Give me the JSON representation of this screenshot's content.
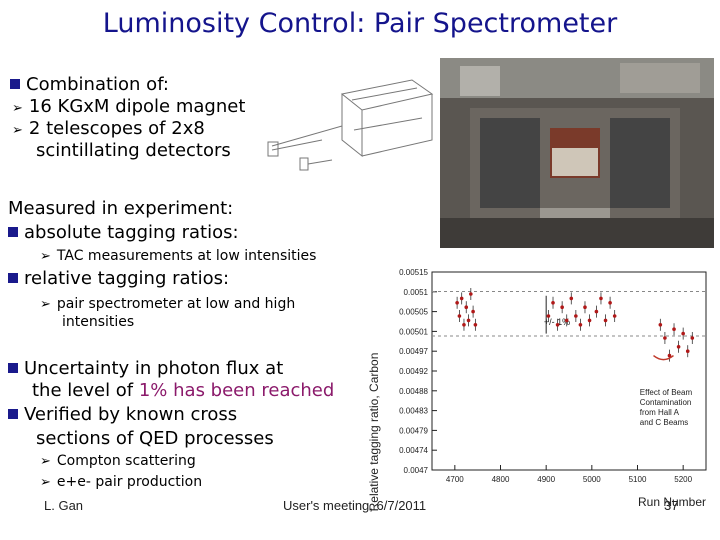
{
  "title": "Luminosity Control: Pair Spectrometer",
  "intro": {
    "heading": "Combination of:",
    "items": [
      "16 KGxM dipole magnet",
      "2 telescopes of 2x8",
      "scintillating detectors"
    ]
  },
  "measured": {
    "heading": "Measured in experiment:",
    "absolute": "absolute tagging ratios:",
    "absolute_sub": "TAC measurements at low intensities",
    "relative": "relative tagging ratios:",
    "relative_sub_1": "pair spectrometer at low and high",
    "relative_sub_2": "intensities"
  },
  "uncertainty": {
    "line1": "Uncertainty in photon flux at",
    "line2_prefix": "the level of ",
    "line2_highlight": "1% has been reached",
    "verified_1": "Verified  by known cross",
    "verified_2": "sections of QED processes",
    "sub_1": "Compton scattering",
    "sub_2": "e+e- pair production"
  },
  "footer": {
    "author": "L. Gan",
    "meeting": "User's meeting, 6/7/2011",
    "page": "37"
  },
  "colors": {
    "title": "#14148c",
    "highlight": "#8b1a6b",
    "bullet": "#1a1a8c"
  },
  "chart_data": {
    "type": "scatter",
    "xlabel": "Run Number",
    "ylabel": "Relative tagging ratio, Carbon",
    "x_ticks": [
      "4700",
      "4800",
      "4900",
      "5000",
      "5100",
      "5200"
    ],
    "y_ticks": [
      "0.00515",
      "0.0051",
      "0.00505",
      "0.00501",
      "0.00497",
      "0.00492",
      "0.00488",
      "0.00483",
      "0.00479",
      "0.00474",
      "0.0047"
    ],
    "annotation_band": "+/- 1%",
    "annotation_note": [
      "Effect of Beam",
      "Contamination",
      "from Hall A",
      "and C Beams"
    ],
    "xlim": [
      4650,
      5250
    ],
    "ylim": [
      0.0047,
      0.00515
    ],
    "series": [
      {
        "x": [
          4705,
          4710,
          4715,
          4720,
          4725,
          4730,
          4735,
          4740,
          4745
        ],
        "y": [
          0.00508,
          0.00505,
          0.00509,
          0.00503,
          0.00507,
          0.00504,
          0.0051,
          0.00506,
          0.00503
        ]
      },
      {
        "x": [
          4905,
          4915,
          4925,
          4935,
          4945,
          4955,
          4965,
          4975,
          4985,
          4995
        ],
        "y": [
          0.00505,
          0.00508,
          0.00503,
          0.00507,
          0.00504,
          0.00509,
          0.00505,
          0.00503,
          0.00507,
          0.00504
        ]
      },
      {
        "x": [
          5010,
          5020,
          5030,
          5040,
          5050
        ],
        "y": [
          0.00506,
          0.00509,
          0.00504,
          0.00508,
          0.00505
        ]
      },
      {
        "x": [
          5150,
          5160,
          5170,
          5180,
          5190,
          5200,
          5210,
          5220
        ],
        "y": [
          0.00503,
          0.005,
          0.00496,
          0.00502,
          0.00498,
          0.00501,
          0.00497,
          0.005
        ]
      }
    ]
  }
}
